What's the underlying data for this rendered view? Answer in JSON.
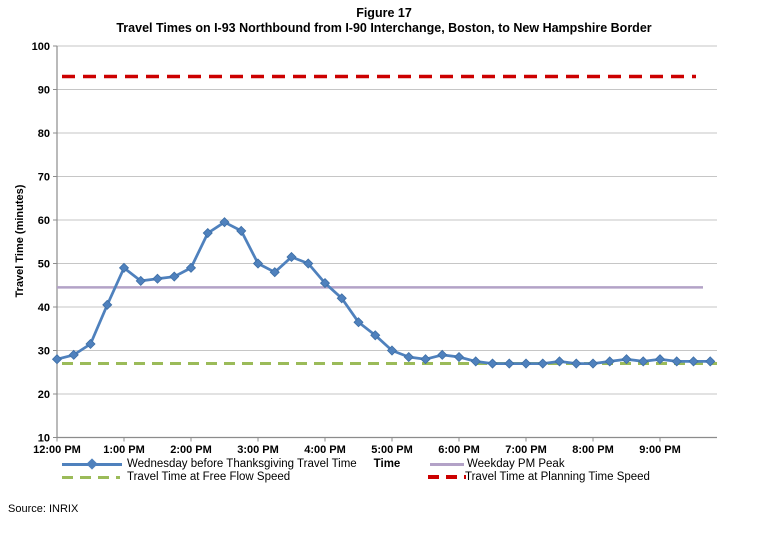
{
  "figure": {
    "title": "Figure 17",
    "subtitle": "Travel Times on I-93 Northbound from I-90 Interchange, Boston, to New Hampshire Border",
    "source_note": "Source: INRIX"
  },
  "chart_data": {
    "type": "line",
    "title": "Figure 17",
    "subtitle": "Travel Times on I-93 Northbound from I-90 Interchange, Boston, to New Hampshire Border",
    "xlabel": "Time",
    "ylabel": "Travel Time (minutes)",
    "ylim": [
      10,
      100
    ],
    "y_ticks": [
      10,
      20,
      30,
      40,
      50,
      60,
      70,
      80,
      90,
      100
    ],
    "x_tick_labels": [
      "12:00 PM",
      "1:00 PM",
      "2:00 PM",
      "3:00 PM",
      "4:00 PM",
      "5:00 PM",
      "6:00 PM",
      "7:00 PM",
      "8:00 PM",
      "9:00 PM"
    ],
    "x_interval_minutes": 15,
    "grid": true,
    "legend_position": "bottom",
    "x": [
      "12:00 PM",
      "12:15 PM",
      "12:30 PM",
      "12:45 PM",
      "1:00 PM",
      "1:15 PM",
      "1:30 PM",
      "1:45 PM",
      "2:00 PM",
      "2:15 PM",
      "2:30 PM",
      "2:45 PM",
      "3:00 PM",
      "3:15 PM",
      "3:30 PM",
      "3:45 PM",
      "4:00 PM",
      "4:15 PM",
      "4:30 PM",
      "4:45 PM",
      "5:00 PM",
      "5:15 PM",
      "5:30 PM",
      "5:45 PM",
      "6:00 PM",
      "6:15 PM",
      "6:30 PM",
      "6:45 PM",
      "7:00 PM",
      "7:15 PM",
      "7:30 PM",
      "7:45 PM",
      "8:00 PM",
      "8:15 PM",
      "8:30 PM",
      "8:45 PM",
      "9:00 PM",
      "9:15 PM",
      "9:30 PM",
      "9:45 PM"
    ],
    "series": [
      {
        "name": "Wednesday before Thanksgiving Travel Time",
        "type": "line-markers",
        "marker": "diamond",
        "color": "#4F81BD",
        "values": [
          28,
          29,
          31.5,
          40.5,
          49,
          46,
          46.5,
          47,
          49,
          57,
          59.5,
          57.5,
          50,
          48,
          51.5,
          50,
          45.5,
          42,
          36.5,
          33.5,
          30,
          28.5,
          28,
          29,
          28.5,
          27.5,
          27,
          27,
          27,
          27,
          27.5,
          27,
          27,
          27.5,
          28,
          27.5,
          28,
          27.5,
          27.5,
          27.5
        ]
      },
      {
        "name": "Weekday PM Peak",
        "type": "reference-line",
        "style": "solid",
        "color": "#B3A2C7",
        "value": 44.5
      },
      {
        "name": "Travel Time at Free Flow Speed",
        "type": "reference-line",
        "style": "dashed",
        "color": "#9BBB59",
        "value": 27
      },
      {
        "name": "Travel Time at Planning Time Speed",
        "type": "reference-line",
        "style": "dashed",
        "color": "#CC0000",
        "value": 93
      }
    ]
  }
}
